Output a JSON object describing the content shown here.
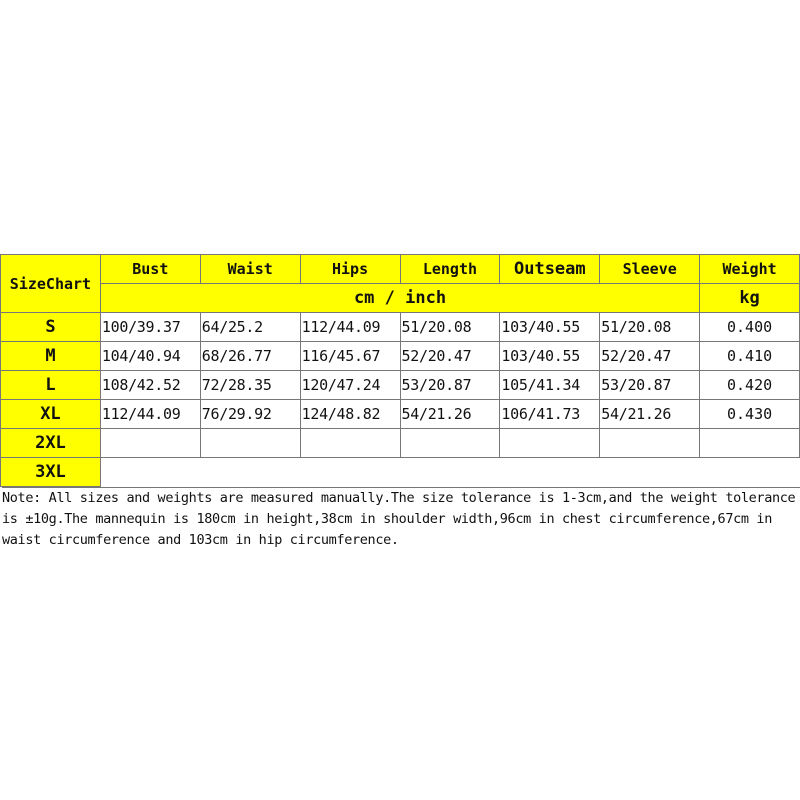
{
  "table": {
    "corner_label": "SizeChart",
    "headers": [
      "Bust",
      "Waist",
      "Hips",
      "Length",
      "Outseam",
      "Sleeve",
      "Weight"
    ],
    "unit_measure": "cm / inch",
    "unit_weight": "kg",
    "rows": [
      {
        "size": "S",
        "values": [
          "100/39.37",
          "64/25.2",
          "112/44.09",
          "51/20.08",
          "103/40.55",
          "51/20.08",
          "0.400"
        ]
      },
      {
        "size": "M",
        "values": [
          "104/40.94",
          "68/26.77",
          "116/45.67",
          "52/20.47",
          "103/40.55",
          "52/20.47",
          "0.410"
        ]
      },
      {
        "size": "L",
        "values": [
          "108/42.52",
          "72/28.35",
          "120/47.24",
          "53/20.87",
          "105/41.34",
          "53/20.87",
          "0.420"
        ]
      },
      {
        "size": "XL",
        "values": [
          "112/44.09",
          "76/29.92",
          "124/48.82",
          "54/21.26",
          "106/41.73",
          "54/21.26",
          "0.430"
        ]
      },
      {
        "size": "2XL",
        "values": [
          "",
          "",
          "",
          "",
          "",
          "",
          ""
        ]
      },
      {
        "size": "3XL",
        "values": []
      }
    ],
    "header_color": "#ffff00"
  },
  "note": "Note: All sizes and weights are measured manually.The size tolerance is 1-3cm,and the weight tolerance is ±10g.The mannequin is 180cm in height,38cm in shoulder width,96cm in chest circumference,67cm in waist circumference and 103cm in hip circumference."
}
